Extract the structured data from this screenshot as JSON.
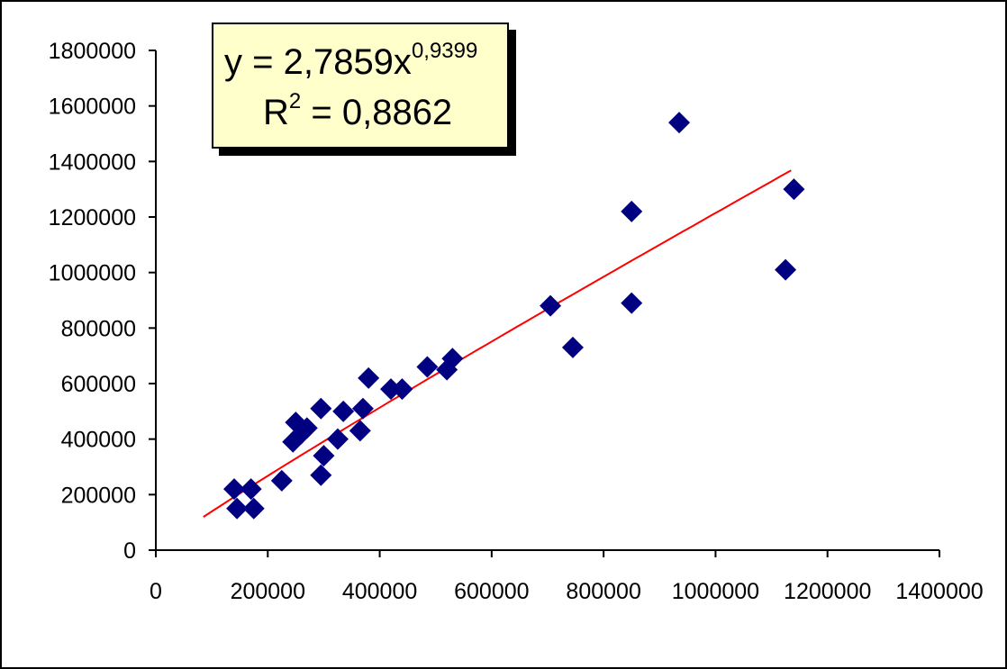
{
  "chart_data": {
    "type": "scatter",
    "title": "",
    "xlabel": "",
    "ylabel": "",
    "xlim": [
      0,
      1400000
    ],
    "ylim": [
      0,
      1800000
    ],
    "x_ticks": [
      "0",
      "200000",
      "400000",
      "600000",
      "800000",
      "1000000",
      "1200000",
      "1400000"
    ],
    "y_ticks": [
      "0",
      "200000",
      "400000",
      "600000",
      "800000",
      "1000000",
      "1200000",
      "1400000",
      "1600000",
      "1800000"
    ],
    "grid": false,
    "marker_color": "#000080",
    "trendline_color": "#ff0000",
    "trendline": {
      "type": "power",
      "coefficient": 2.7859,
      "exponent": 0.9399,
      "x_range": [
        85000,
        1135000
      ],
      "equation_text": "y = 2,7859x",
      "equation_exponent": "0,9399",
      "r2_text_prefix": "R",
      "r2_text_sup": "2",
      "r2_text_suffix": " = 0,8862"
    },
    "points": [
      {
        "x": 140000,
        "y": 220000
      },
      {
        "x": 145000,
        "y": 150000
      },
      {
        "x": 170000,
        "y": 220000
      },
      {
        "x": 175000,
        "y": 150000
      },
      {
        "x": 225000,
        "y": 250000
      },
      {
        "x": 245000,
        "y": 390000
      },
      {
        "x": 250000,
        "y": 460000
      },
      {
        "x": 260000,
        "y": 420000
      },
      {
        "x": 270000,
        "y": 440000
      },
      {
        "x": 295000,
        "y": 510000
      },
      {
        "x": 295000,
        "y": 270000
      },
      {
        "x": 300000,
        "y": 340000
      },
      {
        "x": 325000,
        "y": 400000
      },
      {
        "x": 335000,
        "y": 500000
      },
      {
        "x": 365000,
        "y": 430000
      },
      {
        "x": 370000,
        "y": 510000
      },
      {
        "x": 380000,
        "y": 620000
      },
      {
        "x": 420000,
        "y": 580000
      },
      {
        "x": 440000,
        "y": 580000
      },
      {
        "x": 485000,
        "y": 660000
      },
      {
        "x": 520000,
        "y": 650000
      },
      {
        "x": 530000,
        "y": 690000
      },
      {
        "x": 705000,
        "y": 880000
      },
      {
        "x": 745000,
        "y": 730000
      },
      {
        "x": 850000,
        "y": 1220000
      },
      {
        "x": 850000,
        "y": 890000
      },
      {
        "x": 935000,
        "y": 1540000
      },
      {
        "x": 1125000,
        "y": 1010000
      },
      {
        "x": 1140000,
        "y": 1300000
      }
    ]
  }
}
